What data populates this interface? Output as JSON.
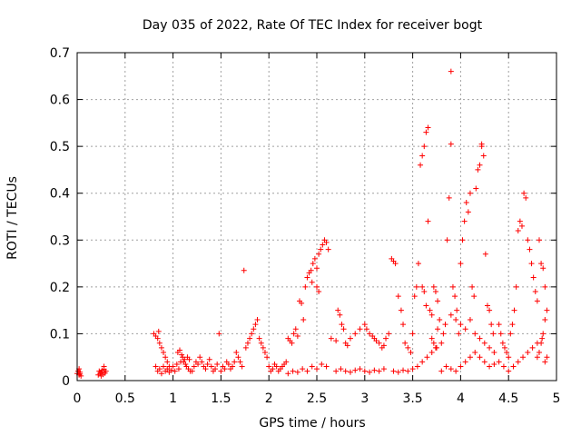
{
  "chart_data": {
    "type": "scatter",
    "title": "Day 035 of 2022, Rate Of TEC Index for receiver bogt",
    "xlabel": "GPS time / hours",
    "ylabel": "ROTI / TECUs",
    "xlim": [
      0,
      5
    ],
    "ylim": [
      0,
      0.7
    ],
    "xticks": [
      0,
      0.5,
      1,
      1.5,
      2,
      2.5,
      3,
      3.5,
      4,
      4.5,
      5
    ],
    "xtick_labels": [
      "0",
      "0.5",
      "1",
      "1.5",
      "2",
      "2.5",
      "3",
      "3.5",
      "4",
      "4.5",
      "5"
    ],
    "yticks": [
      0,
      0.1,
      0.2,
      0.3,
      0.4,
      0.5,
      0.6,
      0.7
    ],
    "ytick_labels": [
      "0",
      "0.1",
      "0.2",
      "0.3",
      "0.4",
      "0.5",
      "0.6",
      "0.7"
    ],
    "grid": true,
    "marker": "+",
    "color": "#ff0000",
    "series": [
      {
        "name": "ROTI",
        "points": [
          [
            0.0,
            0.015
          ],
          [
            0.01,
            0.02
          ],
          [
            0.02,
            0.012
          ],
          [
            0.03,
            0.018
          ],
          [
            0.04,
            0.01
          ],
          [
            0.02,
            0.025
          ],
          [
            0.03,
            0.014
          ],
          [
            0.22,
            0.012
          ],
          [
            0.23,
            0.02
          ],
          [
            0.24,
            0.015
          ],
          [
            0.25,
            0.018
          ],
          [
            0.26,
            0.022
          ],
          [
            0.27,
            0.013
          ],
          [
            0.28,
            0.03
          ],
          [
            0.29,
            0.016
          ],
          [
            0.3,
            0.02
          ],
          [
            0.28,
            0.024
          ],
          [
            0.25,
            0.01
          ],
          [
            0.8,
            0.1
          ],
          [
            0.82,
            0.095
          ],
          [
            0.84,
            0.09
          ],
          [
            0.86,
            0.08
          ],
          [
            0.88,
            0.07
          ],
          [
            0.9,
            0.06
          ],
          [
            0.92,
            0.05
          ],
          [
            0.94,
            0.04
          ],
          [
            0.96,
            0.03
          ],
          [
            0.85,
            0.105
          ],
          [
            0.82,
            0.03
          ],
          [
            0.84,
            0.02
          ],
          [
            0.86,
            0.025
          ],
          [
            0.88,
            0.015
          ],
          [
            0.9,
            0.03
          ],
          [
            0.92,
            0.02
          ],
          [
            0.94,
            0.025
          ],
          [
            0.96,
            0.018
          ],
          [
            0.98,
            0.022
          ],
          [
            1.0,
            0.03
          ],
          [
            1.02,
            0.02
          ],
          [
            1.04,
            0.035
          ],
          [
            1.06,
            0.025
          ],
          [
            1.08,
            0.04
          ],
          [
            1.1,
            0.05
          ],
          [
            1.12,
            0.045
          ],
          [
            1.14,
            0.03
          ],
          [
            1.16,
            0.025
          ],
          [
            1.18,
            0.02
          ],
          [
            1.05,
            0.06
          ],
          [
            1.07,
            0.065
          ],
          [
            1.09,
            0.055
          ],
          [
            1.11,
            0.04
          ],
          [
            1.13,
            0.035
          ],
          [
            1.15,
            0.05
          ],
          [
            1.17,
            0.045
          ],
          [
            1.2,
            0.02
          ],
          [
            1.22,
            0.03
          ],
          [
            1.24,
            0.04
          ],
          [
            1.26,
            0.035
          ],
          [
            1.28,
            0.05
          ],
          [
            1.3,
            0.04
          ],
          [
            1.32,
            0.03
          ],
          [
            1.34,
            0.025
          ],
          [
            1.36,
            0.035
          ],
          [
            1.38,
            0.045
          ],
          [
            1.4,
            0.03
          ],
          [
            1.42,
            0.02
          ],
          [
            1.44,
            0.025
          ],
          [
            1.46,
            0.035
          ],
          [
            1.48,
            0.1
          ],
          [
            1.5,
            0.02
          ],
          [
            1.52,
            0.03
          ],
          [
            1.54,
            0.025
          ],
          [
            1.56,
            0.04
          ],
          [
            1.58,
            0.035
          ],
          [
            1.6,
            0.025
          ],
          [
            1.62,
            0.03
          ],
          [
            1.64,
            0.04
          ],
          [
            1.66,
            0.06
          ],
          [
            1.68,
            0.05
          ],
          [
            1.7,
            0.04
          ],
          [
            1.72,
            0.03
          ],
          [
            1.74,
            0.235
          ],
          [
            1.76,
            0.07
          ],
          [
            1.78,
            0.08
          ],
          [
            1.8,
            0.09
          ],
          [
            1.82,
            0.1
          ],
          [
            1.84,
            0.11
          ],
          [
            1.86,
            0.12
          ],
          [
            1.88,
            0.13
          ],
          [
            1.9,
            0.09
          ],
          [
            1.92,
            0.08
          ],
          [
            1.94,
            0.07
          ],
          [
            1.96,
            0.06
          ],
          [
            1.98,
            0.05
          ],
          [
            2.0,
            0.03
          ],
          [
            2.02,
            0.02
          ],
          [
            2.04,
            0.025
          ],
          [
            2.06,
            0.035
          ],
          [
            2.08,
            0.03
          ],
          [
            2.1,
            0.02
          ],
          [
            2.12,
            0.025
          ],
          [
            2.14,
            0.03
          ],
          [
            2.16,
            0.035
          ],
          [
            2.18,
            0.04
          ],
          [
            2.2,
            0.09
          ],
          [
            2.22,
            0.085
          ],
          [
            2.24,
            0.08
          ],
          [
            2.26,
            0.1
          ],
          [
            2.28,
            0.11
          ],
          [
            2.3,
            0.095
          ],
          [
            2.32,
            0.17
          ],
          [
            2.34,
            0.165
          ],
          [
            2.36,
            0.13
          ],
          [
            2.38,
            0.2
          ],
          [
            2.4,
            0.22
          ],
          [
            2.42,
            0.23
          ],
          [
            2.44,
            0.235
          ],
          [
            2.46,
            0.25
          ],
          [
            2.48,
            0.26
          ],
          [
            2.5,
            0.24
          ],
          [
            2.52,
            0.27
          ],
          [
            2.54,
            0.28
          ],
          [
            2.56,
            0.29
          ],
          [
            2.58,
            0.3
          ],
          [
            2.6,
            0.295
          ],
          [
            2.62,
            0.28
          ],
          [
            2.5,
            0.2
          ],
          [
            2.52,
            0.19
          ],
          [
            2.45,
            0.21
          ],
          [
            2.2,
            0.015
          ],
          [
            2.25,
            0.02
          ],
          [
            2.3,
            0.018
          ],
          [
            2.35,
            0.025
          ],
          [
            2.4,
            0.02
          ],
          [
            2.45,
            0.03
          ],
          [
            2.5,
            0.025
          ],
          [
            2.55,
            0.035
          ],
          [
            2.6,
            0.03
          ],
          [
            2.65,
            0.09
          ],
          [
            2.7,
            0.085
          ],
          [
            2.72,
            0.15
          ],
          [
            2.74,
            0.14
          ],
          [
            2.76,
            0.12
          ],
          [
            2.78,
            0.11
          ],
          [
            2.8,
            0.08
          ],
          [
            2.82,
            0.075
          ],
          [
            2.85,
            0.09
          ],
          [
            2.9,
            0.1
          ],
          [
            2.95,
            0.11
          ],
          [
            3.0,
            0.12
          ],
          [
            3.02,
            0.11
          ],
          [
            3.05,
            0.1
          ],
          [
            3.08,
            0.095
          ],
          [
            3.1,
            0.09
          ],
          [
            3.12,
            0.085
          ],
          [
            3.15,
            0.08
          ],
          [
            3.18,
            0.07
          ],
          [
            3.2,
            0.075
          ],
          [
            2.7,
            0.02
          ],
          [
            2.75,
            0.025
          ],
          [
            2.8,
            0.02
          ],
          [
            2.85,
            0.018
          ],
          [
            2.9,
            0.022
          ],
          [
            2.95,
            0.025
          ],
          [
            3.0,
            0.02
          ],
          [
            3.05,
            0.018
          ],
          [
            3.1,
            0.022
          ],
          [
            3.15,
            0.02
          ],
          [
            3.2,
            0.025
          ],
          [
            3.22,
            0.09
          ],
          [
            3.25,
            0.1
          ],
          [
            3.28,
            0.26
          ],
          [
            3.3,
            0.255
          ],
          [
            3.32,
            0.25
          ],
          [
            3.35,
            0.18
          ],
          [
            3.38,
            0.15
          ],
          [
            3.4,
            0.12
          ],
          [
            3.42,
            0.08
          ],
          [
            3.45,
            0.07
          ],
          [
            3.48,
            0.06
          ],
          [
            3.5,
            0.1
          ],
          [
            3.52,
            0.18
          ],
          [
            3.54,
            0.2
          ],
          [
            3.56,
            0.25
          ],
          [
            3.58,
            0.46
          ],
          [
            3.6,
            0.48
          ],
          [
            3.62,
            0.5
          ],
          [
            3.64,
            0.53
          ],
          [
            3.66,
            0.54
          ],
          [
            3.6,
            0.2
          ],
          [
            3.62,
            0.19
          ],
          [
            3.64,
            0.16
          ],
          [
            3.66,
            0.34
          ],
          [
            3.68,
            0.15
          ],
          [
            3.7,
            0.14
          ],
          [
            3.72,
            0.2
          ],
          [
            3.74,
            0.19
          ],
          [
            3.76,
            0.17
          ],
          [
            3.3,
            0.02
          ],
          [
            3.35,
            0.018
          ],
          [
            3.4,
            0.022
          ],
          [
            3.45,
            0.02
          ],
          [
            3.5,
            0.025
          ],
          [
            3.55,
            0.03
          ],
          [
            3.6,
            0.04
          ],
          [
            3.65,
            0.05
          ],
          [
            3.7,
            0.06
          ],
          [
            3.75,
            0.07
          ],
          [
            3.8,
            0.08
          ],
          [
            3.82,
            0.1
          ],
          [
            3.84,
            0.12
          ],
          [
            3.86,
            0.3
          ],
          [
            3.88,
            0.39
          ],
          [
            3.9,
            0.66
          ],
          [
            3.9,
            0.505
          ],
          [
            3.92,
            0.2
          ],
          [
            3.94,
            0.18
          ],
          [
            3.96,
            0.15
          ],
          [
            3.98,
            0.1
          ],
          [
            4.0,
            0.25
          ],
          [
            4.02,
            0.3
          ],
          [
            4.04,
            0.34
          ],
          [
            4.06,
            0.38
          ],
          [
            4.08,
            0.36
          ],
          [
            4.1,
            0.4
          ],
          [
            4.12,
            0.2
          ],
          [
            4.14,
            0.18
          ],
          [
            4.16,
            0.41
          ],
          [
            4.18,
            0.45
          ],
          [
            4.2,
            0.46
          ],
          [
            4.22,
            0.5
          ],
          [
            4.22,
            0.505
          ],
          [
            4.24,
            0.48
          ],
          [
            4.26,
            0.27
          ],
          [
            4.28,
            0.16
          ],
          [
            4.3,
            0.15
          ],
          [
            4.32,
            0.12
          ],
          [
            4.34,
            0.1
          ],
          [
            3.8,
            0.02
          ],
          [
            3.85,
            0.03
          ],
          [
            3.9,
            0.025
          ],
          [
            3.95,
            0.02
          ],
          [
            4.0,
            0.03
          ],
          [
            4.05,
            0.04
          ],
          [
            4.1,
            0.05
          ],
          [
            4.15,
            0.06
          ],
          [
            4.2,
            0.05
          ],
          [
            4.25,
            0.04
          ],
          [
            4.3,
            0.03
          ],
          [
            4.35,
            0.035
          ],
          [
            4.4,
            0.04
          ],
          [
            4.45,
            0.03
          ],
          [
            4.5,
            0.05
          ],
          [
            4.52,
            0.1
          ],
          [
            4.54,
            0.12
          ],
          [
            4.56,
            0.15
          ],
          [
            4.58,
            0.2
          ],
          [
            4.6,
            0.32
          ],
          [
            4.62,
            0.34
          ],
          [
            4.64,
            0.33
          ],
          [
            4.66,
            0.4
          ],
          [
            4.68,
            0.39
          ],
          [
            4.7,
            0.3
          ],
          [
            4.72,
            0.28
          ],
          [
            4.74,
            0.25
          ],
          [
            4.76,
            0.22
          ],
          [
            4.78,
            0.19
          ],
          [
            4.8,
            0.17
          ],
          [
            4.82,
            0.3
          ],
          [
            4.84,
            0.25
          ],
          [
            4.86,
            0.24
          ],
          [
            4.88,
            0.2
          ],
          [
            4.9,
            0.15
          ],
          [
            4.88,
            0.13
          ],
          [
            4.86,
            0.1
          ],
          [
            4.84,
            0.08
          ],
          [
            4.82,
            0.06
          ],
          [
            4.8,
            0.05
          ],
          [
            4.5,
            0.02
          ],
          [
            4.55,
            0.03
          ],
          [
            4.6,
            0.04
          ],
          [
            4.65,
            0.05
          ],
          [
            4.7,
            0.06
          ],
          [
            4.75,
            0.07
          ],
          [
            4.8,
            0.08
          ],
          [
            4.85,
            0.09
          ],
          [
            4.9,
            0.05
          ],
          [
            4.88,
            0.04
          ],
          [
            3.9,
            0.14
          ],
          [
            3.95,
            0.13
          ],
          [
            4.0,
            0.12
          ],
          [
            4.05,
            0.11
          ],
          [
            4.1,
            0.13
          ],
          [
            4.15,
            0.1
          ],
          [
            4.2,
            0.09
          ],
          [
            4.25,
            0.08
          ],
          [
            4.3,
            0.07
          ],
          [
            4.35,
            0.06
          ],
          [
            4.4,
            0.12
          ],
          [
            4.42,
            0.1
          ],
          [
            4.44,
            0.08
          ],
          [
            4.46,
            0.07
          ],
          [
            4.48,
            0.06
          ],
          [
            3.7,
            0.09
          ],
          [
            3.72,
            0.08
          ],
          [
            3.74,
            0.07
          ],
          [
            3.76,
            0.11
          ],
          [
            3.78,
            0.13
          ]
        ]
      }
    ]
  }
}
